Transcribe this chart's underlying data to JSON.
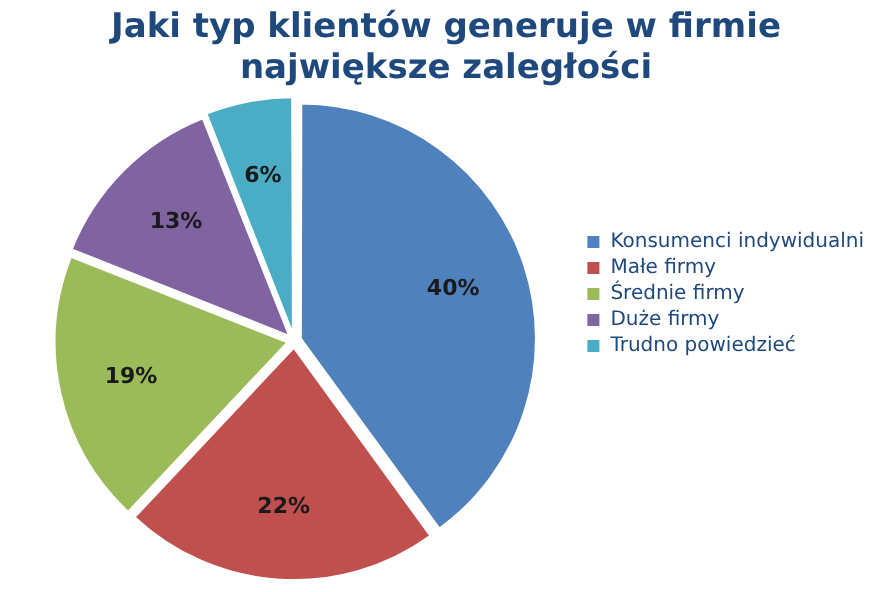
{
  "chart_data": {
    "type": "pie",
    "title": "Jaki typ klientów generuje w firmie\nnajwiększe zaległości",
    "categories": [
      "Konsumenci indywidualni",
      "Małe firmy",
      "Średnie firmy",
      "Duże firmy",
      "Trudno powiedzieć"
    ],
    "values": [
      40,
      22,
      19,
      13,
      6
    ],
    "colors": [
      "#4f81bd",
      "#c0504d",
      "#9bbb59",
      "#8064a2",
      "#4bacc6"
    ],
    "value_labels": [
      "40%",
      "22%",
      "19%",
      "13%",
      "6%"
    ],
    "legend": "right"
  }
}
